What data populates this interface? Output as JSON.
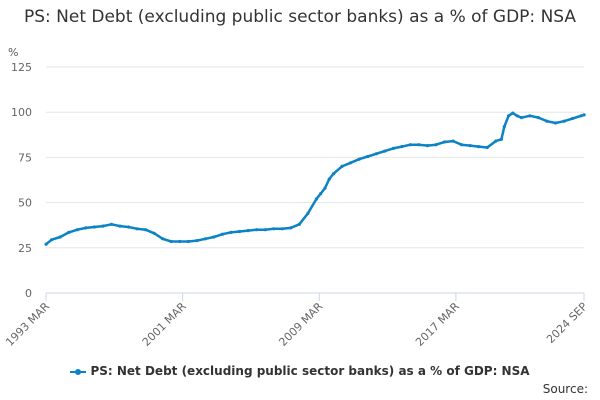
{
  "chart_data": {
    "type": "line",
    "title": "PS: Net Debt (excluding public sector banks) as a % of GDP: NSA",
    "ylabel": "%",
    "ylim": [
      0,
      125
    ],
    "yticks": [
      0,
      25,
      50,
      75,
      100,
      125
    ],
    "xlim": [
      1993.167,
      2024.667
    ],
    "xticks": [
      {
        "label": "1993 MAR",
        "x": 1993.167
      },
      {
        "label": "2001 MAR",
        "x": 2001.167
      },
      {
        "label": "2009 MAR",
        "x": 2009.167
      },
      {
        "label": "2017 MAR",
        "x": 2017.167
      },
      {
        "label": "2024 SEP",
        "x": 2024.667
      }
    ],
    "grid": "horizontal",
    "legend_position": "bottom",
    "series": [
      {
        "name": "PS: Net Debt (excluding public sector banks) as a % of GDP: NSA",
        "color": "#0b83c4",
        "x": [
          1993.17,
          1993.5,
          1994.0,
          1994.5,
          1995.0,
          1995.5,
          1996.0,
          1996.5,
          1997.0,
          1997.5,
          1998.0,
          1998.5,
          1999.0,
          1999.5,
          2000.0,
          2000.5,
          2001.0,
          2001.5,
          2002.0,
          2002.5,
          2003.0,
          2003.5,
          2004.0,
          2004.5,
          2005.0,
          2005.5,
          2006.0,
          2006.5,
          2007.0,
          2007.5,
          2008.0,
          2008.5,
          2009.0,
          2009.25,
          2009.5,
          2009.75,
          2010.0,
          2010.5,
          2011.0,
          2011.5,
          2012.0,
          2012.5,
          2013.0,
          2013.5,
          2014.0,
          2014.5,
          2015.0,
          2015.5,
          2016.0,
          2016.5,
          2017.0,
          2017.5,
          2018.0,
          2018.5,
          2019.0,
          2019.5,
          2019.83,
          2020.0,
          2020.25,
          2020.5,
          2020.75,
          2021.0,
          2021.5,
          2022.0,
          2022.5,
          2023.0,
          2023.5,
          2024.0,
          2024.5,
          2024.67
        ],
        "values": [
          27,
          29.5,
          31,
          33.5,
          35,
          36,
          36.5,
          37,
          38,
          37,
          36.5,
          35.5,
          35,
          33,
          30,
          28.5,
          28.5,
          28.5,
          29,
          30,
          31,
          32.5,
          33.5,
          34,
          34.5,
          35,
          35,
          35.5,
          35.5,
          36,
          38,
          44,
          52,
          55,
          58,
          63,
          66,
          70,
          72,
          74,
          75.5,
          77,
          78.5,
          80,
          81,
          82,
          82,
          81.5,
          82,
          83.5,
          84,
          82,
          81.5,
          81,
          80.5,
          84,
          85,
          92,
          98,
          99.5,
          98,
          97,
          98,
          97,
          95,
          94,
          95,
          96.5,
          98,
          98.5
        ]
      }
    ]
  },
  "legend": {
    "label": "PS: Net Debt (excluding public sector banks) as a % of GDP: NSA"
  },
  "source": {
    "label": "Source:"
  }
}
